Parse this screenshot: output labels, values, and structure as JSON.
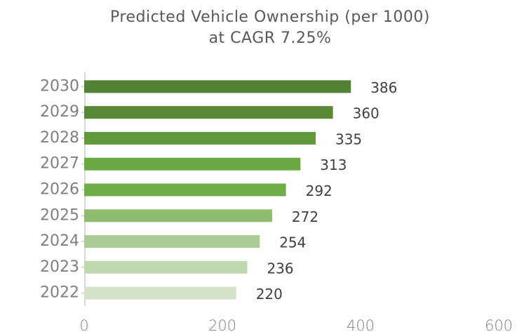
{
  "chart_data": {
    "type": "hbar",
    "title": "Predicted Vehicle Ownership (per 1000)",
    "subtitle": "at CAGR 7.25%",
    "categories": [
      "2022",
      "2023",
      "2024",
      "2025",
      "2026",
      "2027",
      "2028",
      "2029",
      "2030"
    ],
    "values": [
      220,
      236,
      254,
      272,
      292,
      313,
      335,
      360,
      386
    ],
    "colors": [
      "#d3e3c8",
      "#c0d8b0",
      "#a9ca95",
      "#8fbc6f",
      "#70ad47",
      "#6aa843",
      "#619a3e",
      "#5a8a37",
      "#548235"
    ],
    "xlim": [
      0,
      600
    ],
    "xticks": [
      0,
      200,
      400,
      600
    ],
    "grid": false
  }
}
